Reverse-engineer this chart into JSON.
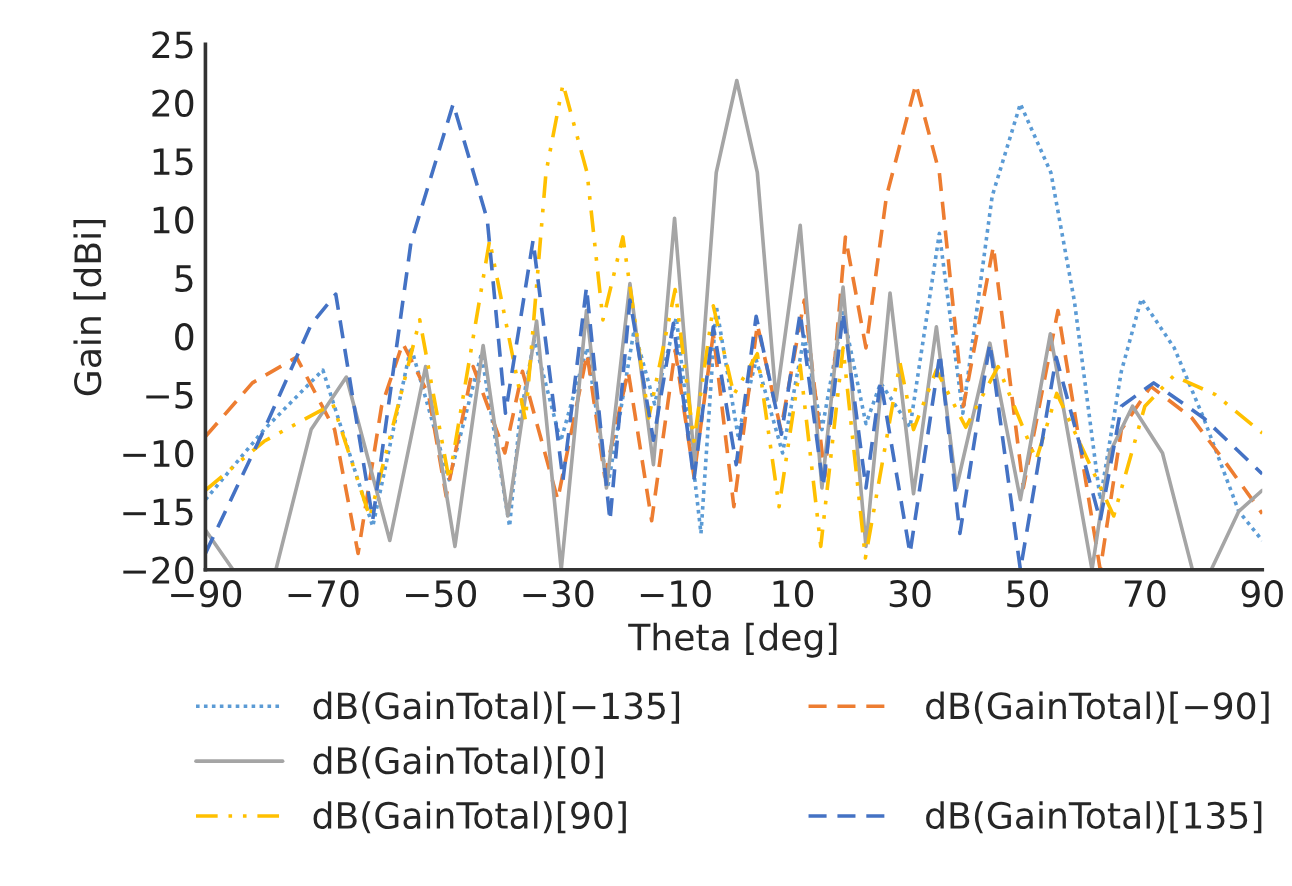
{
  "chart_data": {
    "type": "line",
    "xlabel": "Theta [deg]",
    "ylabel": "Gain [dBi]",
    "xlim": [
      -90,
      90
    ],
    "ylim": [
      -20,
      25
    ],
    "xticks": [
      {
        "value": -90,
        "label": "−90"
      },
      {
        "value": -70,
        "label": "−70"
      },
      {
        "value": -50,
        "label": "−50"
      },
      {
        "value": -30,
        "label": "−30"
      },
      {
        "value": -10,
        "label": "−10"
      },
      10,
      30,
      50,
      70,
      90
    ],
    "yticks": [
      {
        "value": -20,
        "label": "−20"
      },
      {
        "value": -15,
        "label": "−15"
      },
      {
        "value": -10,
        "label": "−10"
      },
      {
        "value": -5,
        "label": "−5"
      },
      0,
      5,
      10,
      15,
      20,
      25
    ],
    "grid": false,
    "legend": "bottom",
    "marker": "none",
    "series": [
      {
        "name": "dB(GainTotal)[−135]",
        "color": "#5b9bd5",
        "line_style": "dotted",
        "x": [
          -90,
          -80,
          -70,
          -61.5,
          -55,
          -48.5,
          -43,
          -38.2,
          -36.5,
          -34,
          -29.5,
          -25,
          -21.5,
          -17,
          -13.5,
          -9.8,
          -5.6,
          -3,
          0.7,
          3.8,
          8.3,
          12,
          15,
          18.6,
          22.5,
          25,
          30,
          35,
          39,
          44,
          48.8,
          54,
          58,
          62.4,
          66,
          69.4,
          75,
          80,
          86,
          90
        ],
        "values": [
          -14,
          -8,
          -2.9,
          -16.3,
          -0.9,
          -12.3,
          -1.5,
          -16.3,
          -7.2,
          -0.3,
          -9,
          -1,
          -13,
          0.5,
          -5.8,
          1.6,
          -16.9,
          2.6,
          -8.5,
          -2,
          -10,
          0,
          -8,
          2,
          -7.5,
          -4,
          -7.8,
          8.8,
          -6.6,
          12,
          19.9,
          14,
          3,
          -14,
          -3,
          3.2,
          -1,
          -7,
          -15,
          -17.5
        ]
      },
      {
        "name": "dB(GainTotal)[−90]",
        "color": "#ed7d31",
        "line_style": "dashed",
        "x": [
          -90,
          -82,
          -74.5,
          -68,
          -64,
          -60,
          -56.4,
          -52,
          -49,
          -44.4,
          -39,
          -36,
          -30,
          -25,
          -22,
          -18,
          -14,
          -10,
          -6.8,
          -3.5,
          0,
          4,
          8,
          12,
          15.5,
          19,
          22.5,
          26,
          31,
          35,
          39.1,
          44.2,
          49.3,
          55.2,
          62.4,
          66,
          71,
          78,
          84,
          90
        ],
        "values": [
          -8.6,
          -4,
          -1.8,
          -8,
          -18.6,
          -6,
          -0.6,
          -5,
          -13.7,
          -2.6,
          -10,
          -3,
          -14,
          -1.5,
          -12,
          -3,
          -15.8,
          -1.2,
          -12,
          0.2,
          -14.6,
          1,
          -8,
          3.1,
          -12,
          8.5,
          -1,
          12,
          21.6,
          14,
          -6,
          7.7,
          -13,
          2.2,
          -20,
          -8,
          -4.3,
          -7,
          -11,
          -15.2
        ]
      },
      {
        "name": "dB(GainTotal)[0]",
        "color": "#a5a5a5",
        "line_style": "solid",
        "x": [
          -90,
          -85.3,
          -78,
          -72,
          -66,
          -58.6,
          -52.5,
          -47.5,
          -42.7,
          -38.5,
          -33.6,
          -29.4,
          -25.1,
          -21.7,
          -17.7,
          -13.7,
          -10.1,
          -6.7,
          -3,
          0.5,
          4,
          7.2,
          11.3,
          15,
          18.6,
          22.5,
          26.6,
          30.6,
          34.5,
          37.9,
          43.6,
          48.8,
          53.9,
          61,
          64,
          67.9,
          73,
          78.1,
          81.3,
          86,
          90
        ],
        "values": [
          -16.6,
          -20,
          -20,
          -8,
          -3.5,
          -17.5,
          -2.6,
          -18,
          -0.8,
          -15.4,
          1.3,
          -20,
          2.2,
          -13,
          4.5,
          -11,
          10.1,
          -11,
          14,
          21.9,
          14,
          -5.5,
          9.5,
          -13,
          4.2,
          -18,
          3.7,
          -13.5,
          0.8,
          -13,
          -0.6,
          -14,
          0.2,
          -20,
          -10,
          -6,
          -10,
          -20,
          -20,
          -15,
          -13.2
        ]
      },
      {
        "name": "dB(GainTotal)[90]",
        "color": "#ffc000",
        "line_style": "dashdot",
        "x": [
          -90,
          -80,
          -68.3,
          -62,
          -53.5,
          -48.5,
          -41.6,
          -35.5,
          -32,
          -29.1,
          -25,
          -22.3,
          -18.9,
          -14.5,
          -10,
          -6.8,
          -3.5,
          0,
          4,
          7.7,
          11.3,
          14.8,
          18.6,
          22.4,
          28.3,
          30.6,
          34.5,
          39.5,
          45,
          51.5,
          55,
          64.7,
          70,
          74.9,
          82,
          90
        ],
        "values": [
          -13.2,
          -9,
          -5.8,
          -15.5,
          1.4,
          -12.3,
          8.2,
          -7.2,
          14,
          21.6,
          14,
          1.4,
          8.5,
          -7,
          4,
          -9,
          2.6,
          -5,
          -1.5,
          -14.6,
          -2.5,
          -18,
          -1,
          -19,
          -2.3,
          -8,
          -2.9,
          -7.8,
          -2.6,
          -10.6,
          -4.9,
          -15.4,
          -6,
          -3.4,
          -5,
          -8.3
        ]
      },
      {
        "name": "dB(GainTotal)[135]",
        "color": "#4472c4",
        "line_style": "dashed",
        "x": [
          -90,
          -80,
          -72,
          -67.8,
          -61.5,
          -55,
          -47.8,
          -42,
          -38.9,
          -34.2,
          -29.1,
          -25.1,
          -21.1,
          -17.7,
          -13.7,
          -10.3,
          -6.8,
          -3.5,
          0.4,
          3.8,
          8.1,
          11.3,
          15.2,
          18.6,
          22.5,
          25,
          30,
          35.1,
          38.5,
          43.6,
          48.8,
          54.9,
          62.4,
          66,
          71.5,
          80,
          90
        ],
        "values": [
          -18.6,
          -8,
          1,
          3.6,
          -15.7,
          8,
          19.9,
          10,
          -6.6,
          8.2,
          -12.3,
          4.2,
          -15.8,
          3.1,
          -8.9,
          1.1,
          -12.3,
          0.8,
          -11,
          1.7,
          -8.4,
          2,
          -12.9,
          2,
          -13,
          -3.8,
          -18.6,
          -1.5,
          -16.9,
          -0.6,
          -20,
          -1.8,
          -15.8,
          -6,
          -4,
          -7,
          -11.8
        ]
      }
    ]
  }
}
